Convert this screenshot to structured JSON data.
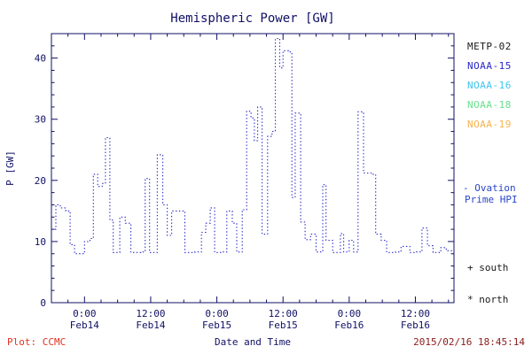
{
  "footer": {
    "plot_credit": "Plot: CCMC",
    "timestamp": "2015/02/16 18:45:14",
    "credit_color": "#e03020",
    "timestamp_color": "#8b1a1a"
  },
  "legend": {
    "items": [
      {
        "label": "METP-02",
        "color": "#1a1a1a"
      },
      {
        "label": "NOAA-15",
        "color": "#2828c8"
      },
      {
        "label": "NOAA-16",
        "color": "#3ec6f0"
      },
      {
        "label": "NOAA-18",
        "color": "#67e08c"
      },
      {
        "label": "NOAA-19",
        "color": "#f7b24a"
      }
    ],
    "ovation_line1": "- Ovation",
    "ovation_line2": "Prime HPI",
    "ovation_color": "#2846c8",
    "south_label": "+ south",
    "north_label": "* north",
    "marker_color": "#1a1a1a"
  },
  "chart_data": {
    "type": "line",
    "title": "Hemispheric Power [GW]",
    "xlabel": "Date and Time",
    "ylabel": "P [GW]",
    "ylim": [
      0,
      44
    ],
    "xlim_hours": [
      0,
      73
    ],
    "yticks": [
      0,
      10,
      20,
      30,
      40
    ],
    "y_minor_step": 2,
    "x_minor_step": 3,
    "grid": false,
    "legend_position": "right",
    "axis_color": "#101066",
    "text_color": "#101066",
    "xticks": [
      {
        "t": 6,
        "time": "0:00",
        "date": "Feb14"
      },
      {
        "t": 18,
        "time": "12:00",
        "date": "Feb14"
      },
      {
        "t": 30,
        "time": "0:00",
        "date": "Feb15"
      },
      {
        "t": 42,
        "time": "12:00",
        "date": "Feb15"
      },
      {
        "t": 54,
        "time": "0:00",
        "date": "Feb16"
      },
      {
        "t": 66,
        "time": "12:00",
        "date": "Feb16"
      }
    ],
    "series": [
      {
        "name": "Ovation Prime HPI (NOAA-15)",
        "color": "#2828c8",
        "style": "dotted-step",
        "points": [
          [
            0.0,
            12
          ],
          [
            0.8,
            16
          ],
          [
            1.6,
            15.5
          ],
          [
            2.6,
            15
          ],
          [
            3.4,
            9.5
          ],
          [
            4.2,
            8
          ],
          [
            6.0,
            10
          ],
          [
            7.0,
            10.5
          ],
          [
            7.6,
            21
          ],
          [
            8.4,
            19
          ],
          [
            9.2,
            19.5
          ],
          [
            9.8,
            27
          ],
          [
            10.6,
            13.5
          ],
          [
            11.2,
            8.2
          ],
          [
            12.4,
            14
          ],
          [
            13.4,
            13
          ],
          [
            14.4,
            8.2
          ],
          [
            16.2,
            8.3
          ],
          [
            17.0,
            20.3
          ],
          [
            17.8,
            8.2
          ],
          [
            19.2,
            24.2
          ],
          [
            20.2,
            16
          ],
          [
            21.0,
            11
          ],
          [
            21.8,
            15
          ],
          [
            23.2,
            15
          ],
          [
            24.2,
            8.2
          ],
          [
            26.0,
            8.3
          ],
          [
            27.2,
            11.5
          ],
          [
            28.0,
            13
          ],
          [
            28.8,
            15.5
          ],
          [
            29.6,
            8.2
          ],
          [
            31.0,
            8.3
          ],
          [
            31.8,
            15
          ],
          [
            32.8,
            13
          ],
          [
            33.6,
            8.3
          ],
          [
            34.6,
            15.2
          ],
          [
            35.4,
            31.3
          ],
          [
            36.2,
            30.2
          ],
          [
            36.8,
            26.5
          ],
          [
            37.4,
            32
          ],
          [
            38.2,
            11.2
          ],
          [
            39.2,
            27.2
          ],
          [
            40.0,
            28
          ],
          [
            40.6,
            43.2
          ],
          [
            41.4,
            38.4
          ],
          [
            42.0,
            41.2
          ],
          [
            43.0,
            41
          ],
          [
            43.6,
            17.2
          ],
          [
            44.2,
            31
          ],
          [
            45.2,
            13.2
          ],
          [
            46.0,
            10.3
          ],
          [
            47.0,
            11.2
          ],
          [
            48.0,
            8.3
          ],
          [
            49.2,
            19.3
          ],
          [
            49.8,
            10.2
          ],
          [
            51.0,
            8.2
          ],
          [
            52.4,
            11.3
          ],
          [
            53.0,
            8.3
          ],
          [
            54.0,
            10.2
          ],
          [
            54.8,
            8.3
          ],
          [
            55.6,
            31.2
          ],
          [
            56.6,
            21.2
          ],
          [
            58.0,
            21
          ],
          [
            58.8,
            11.2
          ],
          [
            59.8,
            10.2
          ],
          [
            60.8,
            8.2
          ],
          [
            62.4,
            8.3
          ],
          [
            63.4,
            9.2
          ],
          [
            65.0,
            8.2
          ],
          [
            66.2,
            8.3
          ],
          [
            67.2,
            12.2
          ],
          [
            68.2,
            9.3
          ],
          [
            69.2,
            8.2
          ],
          [
            70.6,
            9
          ],
          [
            71.6,
            8.5
          ],
          [
            73.0,
            8.5
          ]
        ]
      }
    ]
  }
}
